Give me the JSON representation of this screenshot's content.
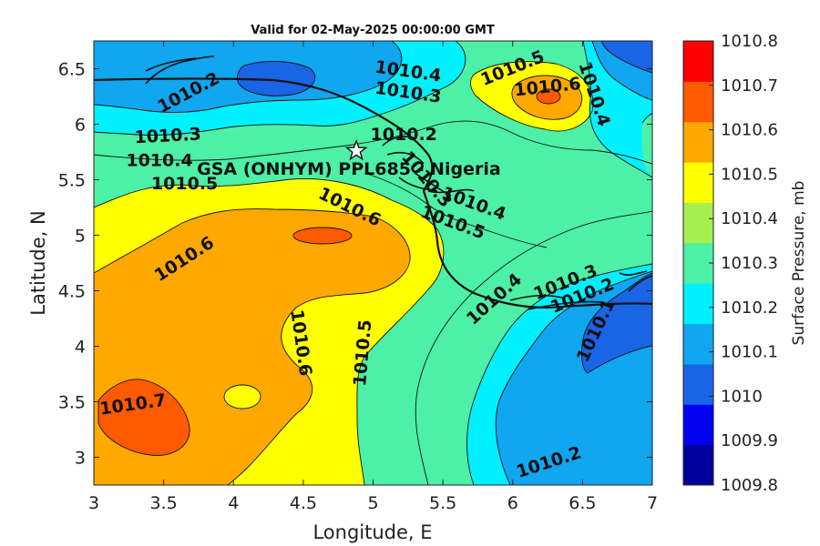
{
  "title": "Valid for 02-May-2025 00:00:00 GMT",
  "station": {
    "label": "GSA (ONHYM) PPL685 - Nigeria",
    "marker": "star-icon",
    "lon": 4.88,
    "lat": 5.76
  },
  "colors": {
    "levels": [
      "#00009c",
      "#0000f0",
      "#1a64e6",
      "#10a6f0",
      "#00f0ff",
      "#4cf0a6",
      "#a6f050",
      "#ffff00",
      "#ffa800",
      "#ff5a00",
      "#ff0000"
    ]
  },
  "chart_data": {
    "type": "heatmap",
    "title": "Valid for 02-May-2025 00:00:00 GMT",
    "xlabel": "Longitude, E",
    "ylabel": "Latitude, N",
    "xlim": [
      3,
      7
    ],
    "ylim": [
      2.75,
      6.75
    ],
    "xticks": [
      "3",
      "3.5",
      "4",
      "4.5",
      "5",
      "5.5",
      "6",
      "6.5",
      "7"
    ],
    "yticks": [
      "3",
      "3.5",
      "4",
      "4.5",
      "5",
      "5.5",
      "6",
      "6.5"
    ],
    "colorbar": {
      "label": "Surface Pressure, mb",
      "ticks": [
        "1010.8",
        "1010.7",
        "1010.6",
        "1010.5",
        "1010.4",
        "1010.3",
        "1010.2",
        "1010.1",
        "1010",
        "1009.9",
        "1009.8"
      ],
      "range": [
        1009.8,
        1010.8
      ]
    },
    "contour_labels": [
      {
        "text": "1010.2",
        "lon": 3.68,
        "lat": 6.28,
        "rot": -28
      },
      {
        "text": "1010.4",
        "lon": 5.25,
        "lat": 6.47,
        "rot": 8
      },
      {
        "text": "1010.3",
        "lon": 5.25,
        "lat": 6.28,
        "rot": 8
      },
      {
        "text": "1010.5",
        "lon": 6.0,
        "lat": 6.5,
        "rot": -22
      },
      {
        "text": "1010.6",
        "lon": 6.25,
        "lat": 6.33,
        "rot": -6
      },
      {
        "text": "1010.4",
        "lon": 6.58,
        "lat": 6.27,
        "rot": 72
      },
      {
        "text": "1010.3",
        "lon": 3.53,
        "lat": 5.89,
        "rot": -3
      },
      {
        "text": "1010.4",
        "lon": 3.47,
        "lat": 5.67,
        "rot": 0
      },
      {
        "text": "1010.5",
        "lon": 3.65,
        "lat": 5.46,
        "rot": 0
      },
      {
        "text": "1010.2",
        "lon": 5.22,
        "lat": 5.9,
        "rot": 0
      },
      {
        "text": "1010.3",
        "lon": 5.38,
        "lat": 5.5,
        "rot": 50
      },
      {
        "text": "1010.4",
        "lon": 5.72,
        "lat": 5.28,
        "rot": 20
      },
      {
        "text": "1010.5",
        "lon": 5.57,
        "lat": 5.11,
        "rot": 20
      },
      {
        "text": "1010.6",
        "lon": 4.83,
        "lat": 5.25,
        "rot": 26
      },
      {
        "text": "1010.6",
        "lon": 3.65,
        "lat": 4.78,
        "rot": -33
      },
      {
        "text": "1010.6",
        "lon": 4.48,
        "lat": 4.03,
        "rot": 82
      },
      {
        "text": "1010.5",
        "lon": 4.93,
        "lat": 3.94,
        "rot": -85
      },
      {
        "text": "1010.7",
        "lon": 3.28,
        "lat": 3.47,
        "rot": -8
      },
      {
        "text": "1010.4",
        "lon": 5.87,
        "lat": 4.42,
        "rot": -42
      },
      {
        "text": "1010.3",
        "lon": 6.38,
        "lat": 4.57,
        "rot": -22
      },
      {
        "text": "1010.2",
        "lon": 6.5,
        "lat": 4.45,
        "rot": -22
      },
      {
        "text": "1010.1",
        "lon": 6.6,
        "lat": 4.14,
        "rot": -65
      },
      {
        "text": "1010.2",
        "lon": 6.26,
        "lat": 2.95,
        "rot": -18
      }
    ]
  }
}
